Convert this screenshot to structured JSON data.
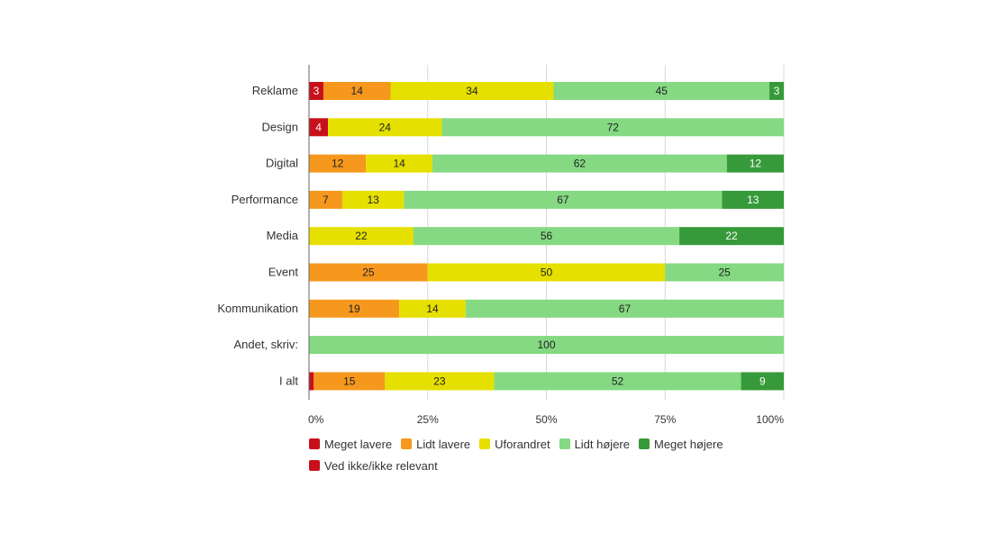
{
  "chart_data": {
    "type": "bar",
    "orientation": "horizontal",
    "stacked": true,
    "normalized_percent": true,
    "categories": [
      "Reklame",
      "Design",
      "Digital",
      "Performance",
      "Media",
      "Event",
      "Kommunikation",
      "Andet, skriv:",
      "I alt"
    ],
    "series": [
      {
        "name": "Meget lavere",
        "color": "#c8101c",
        "values": [
          3,
          4,
          0,
          0,
          0,
          0,
          0,
          0,
          1
        ]
      },
      {
        "name": "Lidt lavere",
        "color": "#f5981d",
        "values": [
          14,
          0,
          12,
          7,
          0,
          25,
          19,
          0,
          15
        ]
      },
      {
        "name": "Uforandret",
        "color": "#e6e000",
        "values": [
          34,
          24,
          14,
          13,
          22,
          50,
          14,
          0,
          23
        ]
      },
      {
        "name": "Lidt højere",
        "color": "#85d983",
        "values": [
          45,
          72,
          62,
          67,
          56,
          25,
          67,
          100,
          52
        ]
      },
      {
        "name": "Meget højere",
        "color": "#379a3a",
        "values": [
          3,
          0,
          12,
          13,
          22,
          0,
          0,
          0,
          9
        ]
      },
      {
        "name": "Ved ikke/ikke relevant",
        "color": "#c8101c",
        "values": [
          0,
          0,
          0,
          0,
          0,
          0,
          0,
          0,
          0
        ]
      }
    ],
    "x_ticks": [
      "0%",
      "25%",
      "50%",
      "75%",
      "100%"
    ],
    "xlim": [
      0,
      100
    ],
    "grid": true,
    "legend_position": "bottom"
  }
}
